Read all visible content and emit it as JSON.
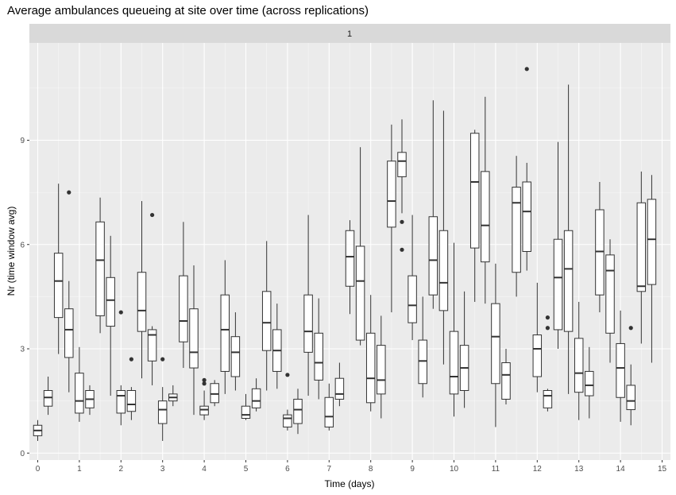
{
  "chart_data": {
    "type": "boxplot",
    "title": "Average ambulances queueing at site over time (across replications)",
    "facet_label": "1",
    "xlabel": "Time (days)",
    "ylabel": "Nr (time window avg)",
    "xlim": [
      -0.2,
      15.2
    ],
    "ylim": [
      -0.2,
      11.8
    ],
    "x_ticks": [
      0,
      1,
      2,
      3,
      4,
      5,
      6,
      7,
      8,
      9,
      10,
      11,
      12,
      13,
      14,
      15
    ],
    "y_ticks": [
      0,
      3,
      6,
      9
    ],
    "grid": true,
    "colors": {
      "panel_bg": "#ebebeb",
      "strip_bg": "#d9d9d9",
      "grid_major": "#ffffff",
      "box_fill": "#ffffff",
      "box_stroke": "#333333",
      "outlier": "#333333"
    },
    "boxes": [
      {
        "x": 0.0,
        "lower": 0.35,
        "q1": 0.5,
        "median": 0.65,
        "q3": 0.8,
        "upper": 0.95,
        "outliers": []
      },
      {
        "x": 0.25,
        "lower": 1.1,
        "q1": 1.35,
        "median": 1.6,
        "q3": 1.8,
        "upper": 2.2,
        "outliers": []
      },
      {
        "x": 0.5,
        "lower": 2.85,
        "q1": 3.9,
        "median": 4.95,
        "q3": 5.75,
        "upper": 7.75,
        "outliers": []
      },
      {
        "x": 0.75,
        "lower": 1.75,
        "q1": 2.75,
        "median": 3.55,
        "q3": 4.15,
        "upper": 4.95,
        "outliers": [
          7.5
        ]
      },
      {
        "x": 1.0,
        "lower": 0.9,
        "q1": 1.15,
        "median": 1.5,
        "q3": 2.3,
        "upper": 3.05,
        "outliers": []
      },
      {
        "x": 1.25,
        "lower": 1.1,
        "q1": 1.3,
        "median": 1.55,
        "q3": 1.8,
        "upper": 1.95,
        "outliers": []
      },
      {
        "x": 1.5,
        "lower": 3.45,
        "q1": 3.95,
        "median": 5.55,
        "q3": 6.65,
        "upper": 7.35,
        "outliers": []
      },
      {
        "x": 1.75,
        "lower": 1.65,
        "q1": 3.65,
        "median": 4.4,
        "q3": 5.05,
        "upper": 6.25,
        "outliers": []
      },
      {
        "x": 2.0,
        "lower": 0.8,
        "q1": 1.15,
        "median": 1.65,
        "q3": 1.8,
        "upper": 1.95,
        "outliers": [
          4.05
        ]
      },
      {
        "x": 2.25,
        "lower": 0.95,
        "q1": 1.2,
        "median": 1.4,
        "q3": 1.8,
        "upper": 1.9,
        "outliers": [
          2.7
        ]
      },
      {
        "x": 2.5,
        "lower": 2.15,
        "q1": 3.5,
        "median": 4.1,
        "q3": 5.2,
        "upper": 7.25,
        "outliers": []
      },
      {
        "x": 2.75,
        "lower": 1.95,
        "q1": 2.65,
        "median": 3.4,
        "q3": 3.55,
        "upper": 3.65,
        "outliers": [
          6.85
        ]
      },
      {
        "x": 3.0,
        "lower": 0.35,
        "q1": 0.85,
        "median": 1.25,
        "q3": 1.5,
        "upper": 1.9,
        "outliers": [
          2.7
        ]
      },
      {
        "x": 3.25,
        "lower": 1.35,
        "q1": 1.5,
        "median": 1.6,
        "q3": 1.7,
        "upper": 1.95,
        "outliers": []
      },
      {
        "x": 3.5,
        "lower": 2.45,
        "q1": 3.2,
        "median": 3.8,
        "q3": 5.1,
        "upper": 6.65,
        "outliers": []
      },
      {
        "x": 3.75,
        "lower": 1.1,
        "q1": 2.45,
        "median": 2.9,
        "q3": 4.15,
        "upper": 5.4,
        "outliers": []
      },
      {
        "x": 4.0,
        "lower": 0.95,
        "q1": 1.1,
        "median": 1.25,
        "q3": 1.35,
        "upper": 1.8,
        "outliers": [
          2.0,
          2.1
        ]
      },
      {
        "x": 4.25,
        "lower": 1.35,
        "q1": 1.45,
        "median": 1.7,
        "q3": 2.0,
        "upper": 2.1,
        "outliers": []
      },
      {
        "x": 4.5,
        "lower": 1.7,
        "q1": 2.35,
        "median": 3.55,
        "q3": 4.55,
        "upper": 5.55,
        "outliers": []
      },
      {
        "x": 4.75,
        "lower": 1.8,
        "q1": 2.2,
        "median": 2.9,
        "q3": 3.35,
        "upper": 4.05,
        "outliers": []
      },
      {
        "x": 5.0,
        "lower": 0.95,
        "q1": 1.0,
        "median": 1.1,
        "q3": 1.35,
        "upper": 1.7,
        "outliers": []
      },
      {
        "x": 5.25,
        "lower": 1.2,
        "q1": 1.3,
        "median": 1.5,
        "q3": 1.85,
        "upper": 2.15,
        "outliers": []
      },
      {
        "x": 5.5,
        "lower": 1.8,
        "q1": 2.95,
        "median": 3.75,
        "q3": 4.65,
        "upper": 6.1,
        "outliers": []
      },
      {
        "x": 5.75,
        "lower": 1.85,
        "q1": 2.35,
        "median": 2.95,
        "q3": 3.55,
        "upper": 4.3,
        "outliers": []
      },
      {
        "x": 6.0,
        "lower": 0.65,
        "q1": 0.75,
        "median": 1.0,
        "q3": 1.1,
        "upper": 1.25,
        "outliers": [
          2.25
        ]
      },
      {
        "x": 6.25,
        "lower": 0.55,
        "q1": 0.85,
        "median": 1.25,
        "q3": 1.55,
        "upper": 1.85,
        "outliers": []
      },
      {
        "x": 6.5,
        "lower": 1.65,
        "q1": 2.9,
        "median": 3.5,
        "q3": 4.55,
        "upper": 6.85,
        "outliers": []
      },
      {
        "x": 6.75,
        "lower": 1.55,
        "q1": 2.1,
        "median": 2.6,
        "q3": 3.45,
        "upper": 4.45,
        "outliers": []
      },
      {
        "x": 7.0,
        "lower": 0.65,
        "q1": 0.75,
        "median": 1.05,
        "q3": 1.6,
        "upper": 2.0,
        "outliers": []
      },
      {
        "x": 7.25,
        "lower": 1.35,
        "q1": 1.55,
        "median": 1.7,
        "q3": 2.15,
        "upper": 2.6,
        "outliers": []
      },
      {
        "x": 7.5,
        "lower": 4.0,
        "q1": 4.8,
        "median": 5.65,
        "q3": 6.4,
        "upper": 6.7,
        "outliers": []
      },
      {
        "x": 7.75,
        "lower": 3.1,
        "q1": 3.25,
        "median": 4.95,
        "q3": 5.95,
        "upper": 8.8,
        "outliers": []
      },
      {
        "x": 8.0,
        "lower": 1.2,
        "q1": 1.45,
        "median": 2.15,
        "q3": 3.45,
        "upper": 4.55,
        "outliers": []
      },
      {
        "x": 8.25,
        "lower": 1.0,
        "q1": 1.7,
        "median": 2.1,
        "q3": 3.1,
        "upper": 3.95,
        "outliers": []
      },
      {
        "x": 8.5,
        "lower": 4.05,
        "q1": 6.5,
        "median": 7.25,
        "q3": 8.4,
        "upper": 9.45,
        "outliers": []
      },
      {
        "x": 8.75,
        "lower": 6.9,
        "q1": 7.95,
        "median": 8.4,
        "q3": 8.65,
        "upper": 9.6,
        "outliers": [
          5.85,
          6.65
        ]
      },
      {
        "x": 9.0,
        "lower": 3.25,
        "q1": 3.75,
        "median": 4.25,
        "q3": 5.1,
        "upper": 6.85,
        "outliers": []
      },
      {
        "x": 9.25,
        "lower": 1.6,
        "q1": 2.0,
        "median": 2.65,
        "q3": 3.25,
        "upper": 4.5,
        "outliers": []
      },
      {
        "x": 9.5,
        "lower": 4.15,
        "q1": 4.55,
        "median": 5.55,
        "q3": 6.8,
        "upper": 10.15,
        "outliers": []
      },
      {
        "x": 9.75,
        "lower": 2.55,
        "q1": 4.1,
        "median": 4.9,
        "q3": 6.4,
        "upper": 9.85,
        "outliers": []
      },
      {
        "x": 10.0,
        "lower": 1.05,
        "q1": 1.7,
        "median": 2.2,
        "q3": 3.5,
        "upper": 6.05,
        "outliers": []
      },
      {
        "x": 10.25,
        "lower": 1.3,
        "q1": 1.8,
        "median": 2.45,
        "q3": 3.1,
        "upper": 4.65,
        "outliers": []
      },
      {
        "x": 10.5,
        "lower": 4.35,
        "q1": 5.9,
        "median": 7.8,
        "q3": 9.2,
        "upper": 9.3,
        "outliers": []
      },
      {
        "x": 10.75,
        "lower": 4.3,
        "q1": 5.5,
        "median": 6.55,
        "q3": 8.1,
        "upper": 10.25,
        "outliers": []
      },
      {
        "x": 11.0,
        "lower": 0.75,
        "q1": 2.0,
        "median": 3.35,
        "q3": 4.3,
        "upper": 5.45,
        "outliers": []
      },
      {
        "x": 11.25,
        "lower": 1.4,
        "q1": 1.55,
        "median": 2.25,
        "q3": 2.6,
        "upper": 3.0,
        "outliers": []
      },
      {
        "x": 11.5,
        "lower": 4.5,
        "q1": 5.2,
        "median": 7.2,
        "q3": 7.65,
        "upper": 8.55,
        "outliers": []
      },
      {
        "x": 11.75,
        "lower": 5.25,
        "q1": 5.8,
        "median": 6.95,
        "q3": 7.8,
        "upper": 8.35,
        "outliers": [
          11.05
        ]
      },
      {
        "x": 12.0,
        "lower": 1.75,
        "q1": 2.2,
        "median": 3.0,
        "q3": 3.4,
        "upper": 4.9,
        "outliers": []
      },
      {
        "x": 12.25,
        "lower": 1.2,
        "q1": 1.3,
        "median": 1.65,
        "q3": 1.8,
        "upper": 1.85,
        "outliers": [
          3.6,
          3.9
        ]
      },
      {
        "x": 12.5,
        "lower": 3.0,
        "q1": 3.55,
        "median": 5.05,
        "q3": 6.15,
        "upper": 8.95,
        "outliers": []
      },
      {
        "x": 12.75,
        "lower": 1.7,
        "q1": 3.5,
        "median": 5.3,
        "q3": 6.4,
        "upper": 10.6,
        "outliers": []
      },
      {
        "x": 13.0,
        "lower": 0.95,
        "q1": 1.75,
        "median": 2.3,
        "q3": 3.3,
        "upper": 4.35,
        "outliers": []
      },
      {
        "x": 13.25,
        "lower": 1.0,
        "q1": 1.65,
        "median": 1.95,
        "q3": 2.35,
        "upper": 3.05,
        "outliers": []
      },
      {
        "x": 13.5,
        "lower": 4.05,
        "q1": 4.55,
        "median": 5.8,
        "q3": 7.0,
        "upper": 7.8,
        "outliers": []
      },
      {
        "x": 13.75,
        "lower": 2.6,
        "q1": 3.45,
        "median": 5.25,
        "q3": 5.7,
        "upper": 6.15,
        "outliers": []
      },
      {
        "x": 14.0,
        "lower": 0.9,
        "q1": 1.6,
        "median": 2.45,
        "q3": 3.15,
        "upper": 4.1,
        "outliers": []
      },
      {
        "x": 14.25,
        "lower": 0.8,
        "q1": 1.25,
        "median": 1.5,
        "q3": 1.95,
        "upper": 2.55,
        "outliers": [
          3.6
        ]
      },
      {
        "x": 14.5,
        "lower": 3.15,
        "q1": 4.65,
        "median": 4.8,
        "q3": 7.2,
        "upper": 8.1,
        "outliers": []
      },
      {
        "x": 14.75,
        "lower": 2.6,
        "q1": 4.85,
        "median": 6.15,
        "q3": 7.3,
        "upper": 8.0,
        "outliers": []
      }
    ]
  }
}
